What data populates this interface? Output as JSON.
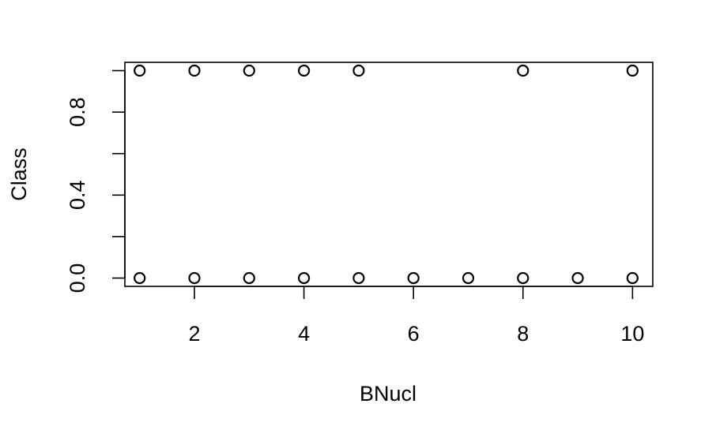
{
  "chart_data": {
    "type": "scatter",
    "title": "",
    "xlabel": "BNucl",
    "ylabel": "Class",
    "xlim": [
      0.73,
      10.37
    ],
    "ylim": [
      -0.04,
      1.04
    ],
    "x_ticks": [
      2,
      4,
      6,
      8,
      10
    ],
    "x_tick_labels": [
      "2",
      "4",
      "6",
      "8",
      "10"
    ],
    "y_ticks": [
      0.0,
      0.2,
      0.4,
      0.6,
      0.8,
      1.0
    ],
    "y_tick_labels": [
      "0.0",
      "",
      "0.4",
      "",
      "0.8",
      ""
    ],
    "grid": false,
    "marker": "open-circle",
    "color": "#000000",
    "points": [
      {
        "x": 1,
        "y": 1
      },
      {
        "x": 2,
        "y": 1
      },
      {
        "x": 3,
        "y": 1
      },
      {
        "x": 4,
        "y": 1
      },
      {
        "x": 5,
        "y": 1
      },
      {
        "x": 8,
        "y": 1
      },
      {
        "x": 10,
        "y": 1
      },
      {
        "x": 1,
        "y": 0
      },
      {
        "x": 2,
        "y": 0
      },
      {
        "x": 3,
        "y": 0
      },
      {
        "x": 4,
        "y": 0
      },
      {
        "x": 5,
        "y": 0
      },
      {
        "x": 6,
        "y": 0
      },
      {
        "x": 7,
        "y": 0
      },
      {
        "x": 8,
        "y": 0
      },
      {
        "x": 9,
        "y": 0
      },
      {
        "x": 10,
        "y": 0
      }
    ]
  }
}
